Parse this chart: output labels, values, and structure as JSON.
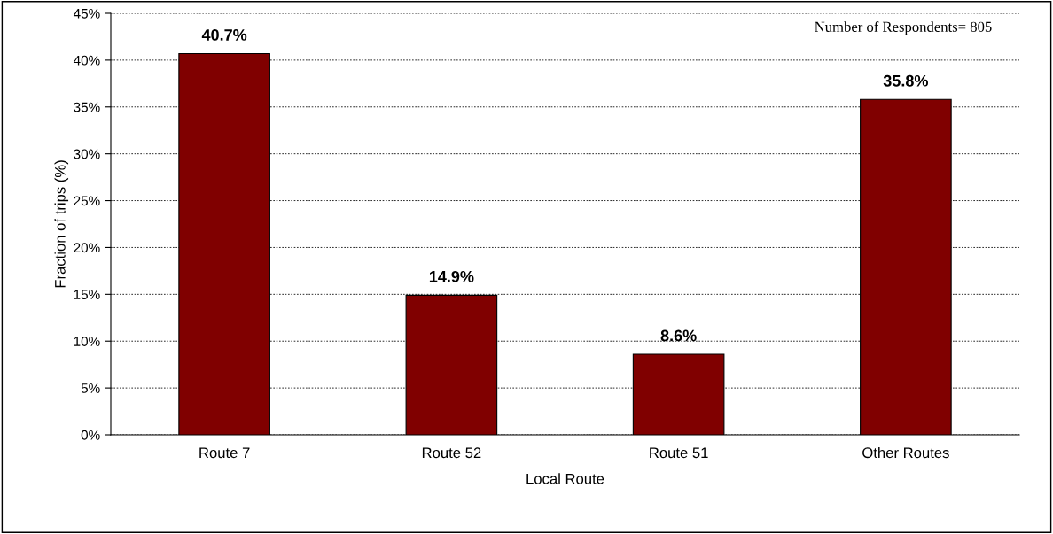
{
  "chart_data": {
    "type": "bar",
    "xlabel": "Local Route",
    "ylabel": "Fraction of trips (%)",
    "categories": [
      "Route 7",
      "Route 52",
      "Route 51",
      "Other Routes"
    ],
    "values": [
      40.7,
      14.9,
      8.6,
      35.8
    ],
    "color": "#800000",
    "value_labels": [
      "40.7%",
      "14.9%",
      "8.6%",
      "35.8%"
    ],
    "ylim": [
      0,
      45
    ],
    "yticks": [
      {
        "value": 0,
        "label": "0%"
      },
      {
        "value": 5,
        "label": "5%"
      },
      {
        "value": 10,
        "label": "10%"
      },
      {
        "value": 15,
        "label": "15%"
      },
      {
        "value": 20,
        "label": "20%"
      },
      {
        "value": 25,
        "label": "25%"
      },
      {
        "value": 30,
        "label": "30%"
      },
      {
        "value": 35,
        "label": "35%"
      },
      {
        "value": 40,
        "label": "40%"
      },
      {
        "value": 45,
        "label": "45%"
      }
    ],
    "grid": "y",
    "legend": false,
    "annotations": [
      "Number of Respondents= 805"
    ]
  }
}
